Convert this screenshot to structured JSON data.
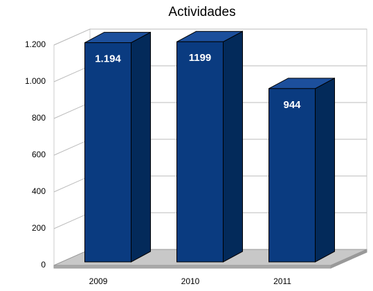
{
  "chart_data": {
    "type": "bar3d",
    "title": "Actividades",
    "categories": [
      "2009",
      "2010",
      "2011"
    ],
    "values": [
      1194,
      1199,
      944
    ],
    "value_labels": [
      "1.194",
      "1199",
      "944"
    ],
    "color": "#0a3b80",
    "ylim": [
      0,
      1200
    ],
    "yticks": [
      0,
      200,
      400,
      600,
      800,
      {
        "value": 1000,
        "label": "1.000"
      },
      {
        "value": 1200,
        "label": "1.200"
      }
    ],
    "grid": true
  }
}
